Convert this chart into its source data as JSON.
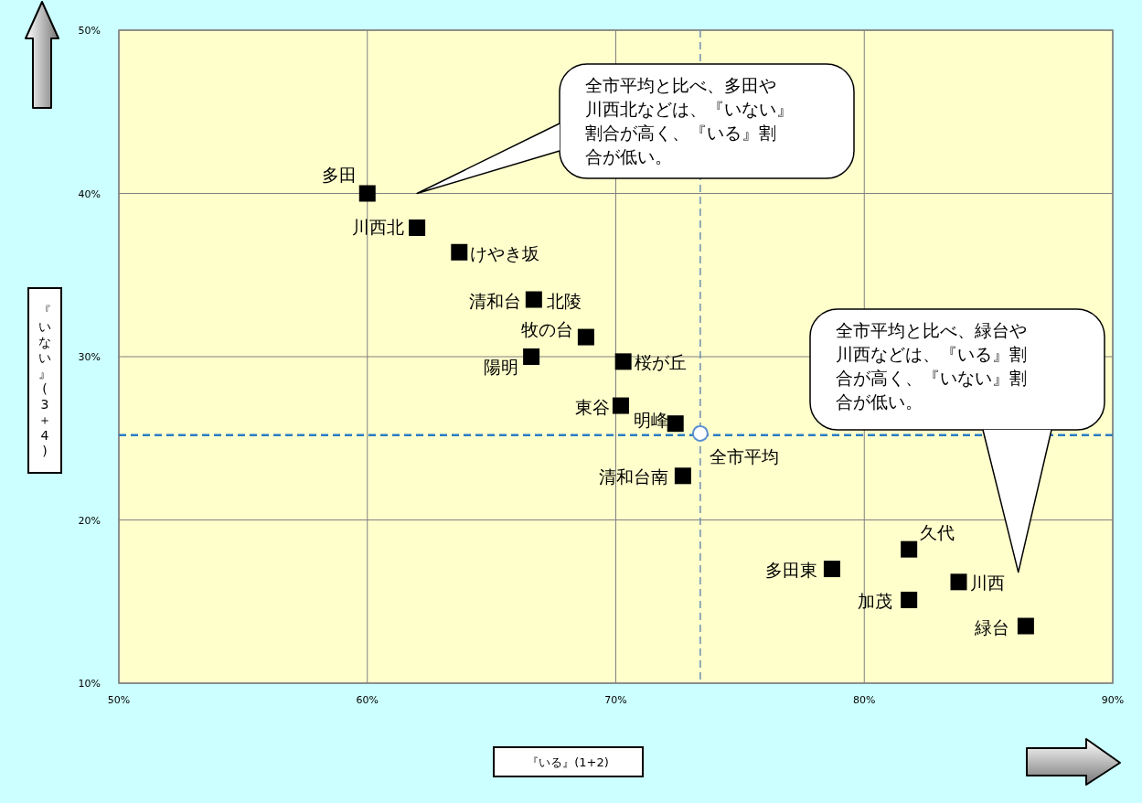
{
  "chart_data": {
    "type": "scatter",
    "xlabel": "『いる』(1+2)",
    "ylabel": "『いない』(3＋4)",
    "xlim": [
      50,
      90
    ],
    "xticks": [
      {
        "value": 50,
        "label": "50%"
      },
      {
        "value": 60,
        "label": "60%"
      },
      {
        "value": 70,
        "label": "70%"
      },
      {
        "value": 80,
        "label": "80%"
      },
      {
        "value": 90,
        "label": "90%"
      }
    ],
    "ylim": [
      10,
      50
    ],
    "yticks": [
      {
        "value": 10,
        "label": "10%"
      },
      {
        "value": 20,
        "label": "20%"
      },
      {
        "value": 30,
        "label": "30%"
      },
      {
        "value": 40,
        "label": "40%"
      },
      {
        "value": 50,
        "label": "50%"
      }
    ],
    "grid": true,
    "series": [
      {
        "color": "#000000",
        "marker": "square",
        "x": [
          60.0,
          62.0,
          63.7,
          66.7,
          68.8,
          66.6,
          70.3,
          70.2,
          72.4,
          72.7,
          81.8,
          78.7,
          83.8,
          81.8,
          86.5
        ],
        "values": [
          40.0,
          37.9,
          36.4,
          33.5,
          31.2,
          30.0,
          29.7,
          27.0,
          25.9,
          22.7,
          18.2,
          17.0,
          16.2,
          15.1,
          13.5
        ]
      },
      {
        "color": "#5b8fd0",
        "marker": "circle",
        "x": [
          73.4
        ],
        "values": [
          25.3
        ]
      }
    ],
    "ref_lines": [
      {
        "axis": "x",
        "value": 73.4,
        "color": "#6f8fb0",
        "line_style": "dashed"
      },
      {
        "axis": "y",
        "value": 25.2,
        "color": "#2a7cc4",
        "line_style": "dashed"
      }
    ],
    "annotations": [
      "全市平均と比べ、多田や川西北などは、『いない』割合が高く、『いる』割合が低い。",
      "全市平均と比べ、緑台や川西などは、『いる』割合が高く、『いない』割合が低い。",
      {
        "text": "多田",
        "x": 60.0,
        "y": 40.0
      },
      {
        "text": "川西北",
        "x": 62.0,
        "y": 37.9
      },
      {
        "text": "けやき坂",
        "x": 63.7,
        "y": 36.4
      },
      {
        "text": "清和台",
        "x": 66.7,
        "y": 33.5
      },
      {
        "text": "北陵",
        "x": 66.7,
        "y": 33.5
      },
      {
        "text": "牧の台",
        "x": 68.8,
        "y": 31.2
      },
      {
        "text": "陽明",
        "x": 66.6,
        "y": 30.0
      },
      {
        "text": "桜が丘",
        "x": 70.3,
        "y": 29.7
      },
      {
        "text": "東谷",
        "x": 70.2,
        "y": 27.0
      },
      {
        "text": "明峰",
        "x": 72.4,
        "y": 25.9
      },
      {
        "text": "全市平均",
        "x": 73.4,
        "y": 25.3
      },
      {
        "text": "清和台南",
        "x": 72.7,
        "y": 22.7
      },
      {
        "text": "久代",
        "x": 81.8,
        "y": 18.2
      },
      {
        "text": "多田東",
        "x": 78.7,
        "y": 17.0
      },
      {
        "text": "川西",
        "x": 83.8,
        "y": 16.2
      },
      {
        "text": "加茂",
        "x": 81.8,
        "y": 15.1
      },
      {
        "text": "緑台",
        "x": 86.5,
        "y": 13.5
      }
    ]
  }
}
